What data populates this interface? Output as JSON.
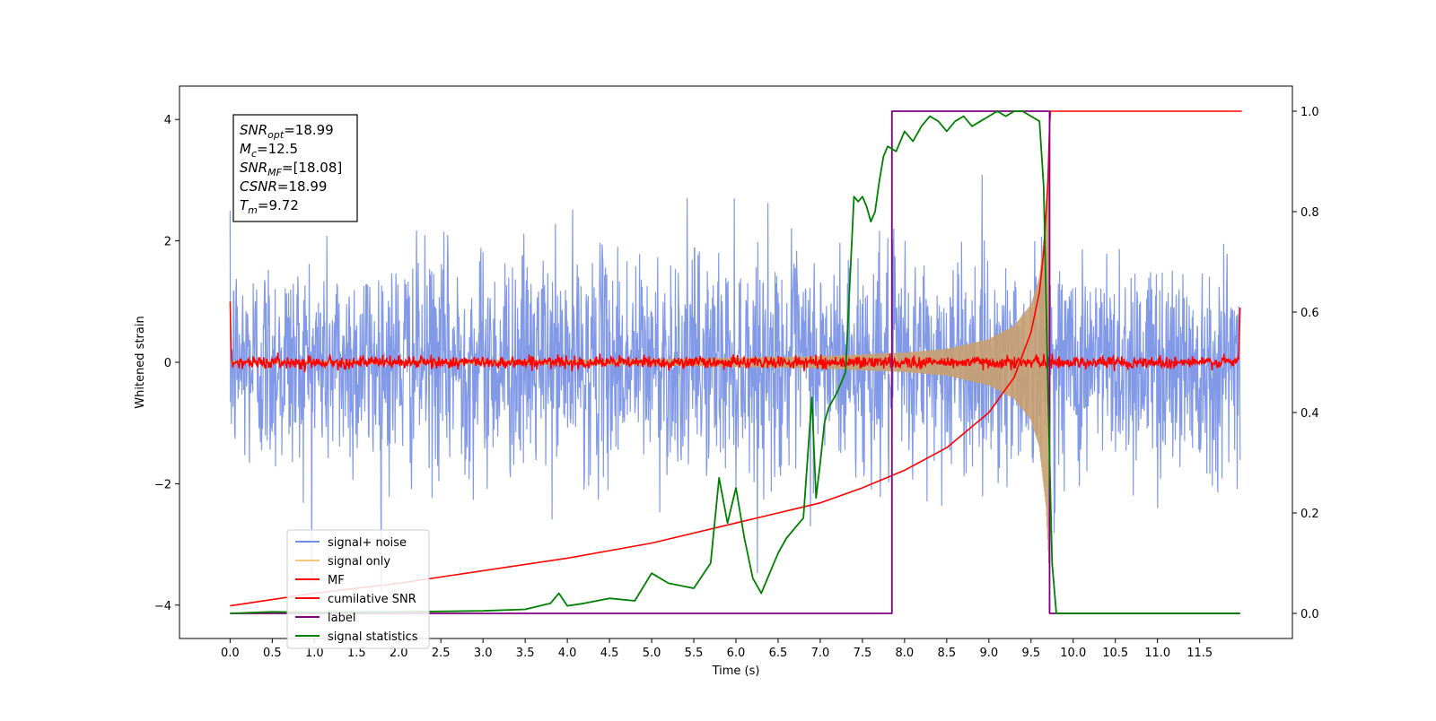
{
  "chart_data": {
    "type": "line",
    "xlabel": "Time (s)",
    "ylabel": "Whitened strain",
    "xlim": [
      -0.6,
      12.6
    ],
    "ylim": [
      -4.55,
      4.55
    ],
    "y2lim": [
      -0.05,
      1.05
    ],
    "x_ticks": [
      "0.0",
      "0.5",
      "1.0",
      "1.5",
      "2.0",
      "2.5",
      "3.0",
      "3.5",
      "4.0",
      "4.5",
      "5.0",
      "5.5",
      "6.0",
      "6.5",
      "7.0",
      "7.5",
      "8.0",
      "8.5",
      "9.0",
      "9.5",
      "10.0",
      "10.5",
      "11.0",
      "11.5"
    ],
    "y_ticks": [
      "−4",
      "−2",
      "0",
      "2",
      "4"
    ],
    "y2_ticks": [
      "0.0",
      "0.2",
      "0.4",
      "0.6",
      "0.8",
      "1.0"
    ],
    "info_box": [
      {
        "var": "SNR",
        "sub": "opt",
        "value": "=18.99"
      },
      {
        "var": "M",
        "sub": "c",
        "value": "=12.5"
      },
      {
        "var": "SNR",
        "sub": "MF",
        "value": "=[18.08]"
      },
      {
        "var": "CSNR",
        "sub": "",
        "value": "=18.99"
      },
      {
        "var": "T",
        "sub": "m",
        "value": "=9.72"
      }
    ],
    "legend": {
      "placement": "lower-left",
      "entries": [
        {
          "label": "signal+ noise",
          "color": "#6f8fe6"
        },
        {
          "label": "signal only",
          "color": "#f5c77a"
        },
        {
          "label": "MF",
          "color": "#ff0000"
        },
        {
          "label": "cumilative SNR",
          "color": "#ff0000"
        },
        {
          "label": "label",
          "color": "#800080"
        },
        {
          "label": "signal statistics",
          "color": "#008000"
        }
      ]
    },
    "series": [
      {
        "name": "signal+ noise",
        "axis": "left",
        "color": "#7a94e6",
        "kind": "noise",
        "x_range": [
          0,
          11.98
        ],
        "std": 0.9
      },
      {
        "name": "signal only",
        "axis": "left",
        "color": "#c8a070",
        "kind": "chirp",
        "x_range": [
          0,
          9.72
        ],
        "envelope": [
          [
            0,
            0.02
          ],
          [
            5.0,
            0.05
          ],
          [
            7.0,
            0.1
          ],
          [
            8.0,
            0.16
          ],
          [
            8.5,
            0.22
          ],
          [
            9.0,
            0.38
          ],
          [
            9.3,
            0.6
          ],
          [
            9.5,
            0.95
          ],
          [
            9.6,
            1.4
          ],
          [
            9.68,
            2.4
          ],
          [
            9.72,
            3.6
          ]
        ]
      },
      {
        "name": "MF",
        "axis": "left",
        "color": "#ff0000",
        "kind": "small-noise",
        "x_range": [
          0,
          11.98
        ],
        "std": 0.05
      },
      {
        "name": "cumilative SNR",
        "axis": "right",
        "x": [
          0.0,
          1.0,
          2.0,
          3.0,
          4.0,
          5.0,
          6.0,
          6.5,
          7.0,
          7.5,
          8.0,
          8.5,
          9.0,
          9.3,
          9.5,
          9.6,
          9.65,
          9.7,
          9.72,
          9.73,
          12.0
        ],
        "y": [
          0.015,
          0.04,
          0.06,
          0.085,
          0.11,
          0.14,
          0.18,
          0.2,
          0.22,
          0.25,
          0.285,
          0.33,
          0.4,
          0.47,
          0.56,
          0.64,
          0.72,
          0.86,
          0.97,
          1.0,
          1.0
        ]
      },
      {
        "name": "label",
        "axis": "right",
        "x": [
          0.0,
          7.85,
          7.85,
          9.72,
          9.72,
          11.98
        ],
        "y": [
          0.0,
          0.0,
          1.0,
          1.0,
          0.0,
          0.0
        ]
      },
      {
        "name": "signal statistics",
        "axis": "right",
        "x": [
          0.0,
          0.5,
          1.0,
          2.0,
          3.0,
          3.5,
          3.8,
          3.9,
          4.0,
          4.2,
          4.5,
          4.8,
          5.0,
          5.2,
          5.5,
          5.7,
          5.8,
          5.9,
          6.0,
          6.1,
          6.2,
          6.3,
          6.5,
          6.6,
          6.8,
          6.9,
          6.95,
          7.0,
          7.05,
          7.1,
          7.2,
          7.3,
          7.4,
          7.45,
          7.5,
          7.55,
          7.6,
          7.65,
          7.7,
          7.75,
          7.8,
          7.9,
          8.0,
          8.1,
          8.2,
          8.3,
          8.4,
          8.5,
          8.6,
          8.7,
          8.8,
          8.9,
          9.0,
          9.1,
          9.2,
          9.3,
          9.4,
          9.5,
          9.6,
          9.65,
          9.7,
          9.75,
          9.8,
          9.85,
          11.98
        ],
        "y": [
          0.0,
          0.003,
          0.002,
          0.003,
          0.005,
          0.008,
          0.02,
          0.04,
          0.015,
          0.02,
          0.03,
          0.025,
          0.08,
          0.06,
          0.05,
          0.1,
          0.27,
          0.18,
          0.25,
          0.15,
          0.07,
          0.04,
          0.12,
          0.15,
          0.19,
          0.43,
          0.23,
          0.3,
          0.38,
          0.41,
          0.44,
          0.48,
          0.83,
          0.82,
          0.83,
          0.81,
          0.78,
          0.8,
          0.86,
          0.91,
          0.93,
          0.92,
          0.96,
          0.94,
          0.97,
          0.99,
          0.98,
          0.96,
          0.98,
          0.99,
          0.97,
          0.98,
          0.99,
          1.0,
          0.99,
          1.0,
          1.0,
          0.99,
          0.98,
          0.85,
          0.45,
          0.1,
          0.0,
          0.0,
          0.0
        ]
      }
    ]
  }
}
